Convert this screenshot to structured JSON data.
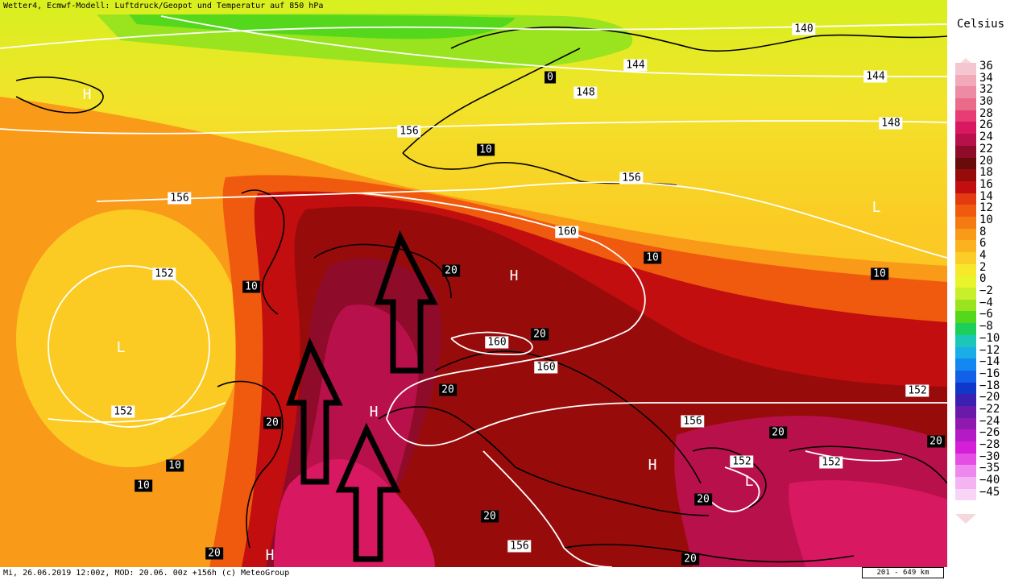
{
  "header": {
    "title": "Wetter4, Ecmwf-Modell: Luftdruck/Geopot und Temperatur auf 850 hPa"
  },
  "footer": {
    "info": "Mi, 26.06.2019 12:00z, MOD: 20.06. 00z +156h (c) MeteoGroup",
    "scale": "201 - 649 km"
  },
  "legend": {
    "unit": "Celsius",
    "items": [
      {
        "label": "36",
        "color": "#f4c6cf"
      },
      {
        "label": "34",
        "color": "#f2a9b8"
      },
      {
        "label": "32",
        "color": "#ee8aa3"
      },
      {
        "label": "30",
        "color": "#ea6a8a"
      },
      {
        "label": "28",
        "color": "#e83c74"
      },
      {
        "label": "26",
        "color": "#d81860"
      },
      {
        "label": "24",
        "color": "#b8104a"
      },
      {
        "label": "22",
        "color": "#8f0b2a"
      },
      {
        "label": "20",
        "color": "#6a0b0b"
      },
      {
        "label": "18",
        "color": "#980b0b"
      },
      {
        "label": "16",
        "color": "#c20e0e"
      },
      {
        "label": "14",
        "color": "#e33a10"
      },
      {
        "label": "12",
        "color": "#f05a0e"
      },
      {
        "label": "10",
        "color": "#f57a12"
      },
      {
        "label": "8",
        "color": "#f99a18"
      },
      {
        "label": "6",
        "color": "#fbb21f"
      },
      {
        "label": "4",
        "color": "#fbcd26"
      },
      {
        "label": "2",
        "color": "#f7e82b"
      },
      {
        "label": "0",
        "color": "#e9f52a"
      },
      {
        "label": "−2",
        "color": "#c9ef2a"
      },
      {
        "label": "−4",
        "color": "#99e41f"
      },
      {
        "label": "−6",
        "color": "#55d81c"
      },
      {
        "label": "−8",
        "color": "#1ccf5a"
      },
      {
        "label": "−10",
        "color": "#1cc7b8"
      },
      {
        "label": "−12",
        "color": "#1aaee8"
      },
      {
        "label": "−14",
        "color": "#1388f0"
      },
      {
        "label": "−16",
        "color": "#1260e8"
      },
      {
        "label": "−18",
        "color": "#1038c8"
      },
      {
        "label": "−20",
        "color": "#3a1fb0"
      },
      {
        "label": "−22",
        "color": "#6a1aa8"
      },
      {
        "label": "−24",
        "color": "#901ab0"
      },
      {
        "label": "−26",
        "color": "#b41bc4"
      },
      {
        "label": "−28",
        "color": "#d41ed8"
      },
      {
        "label": "−30",
        "color": "#e44ee2"
      },
      {
        "label": "−35",
        "color": "#ee88ee"
      },
      {
        "label": "−40",
        "color": "#f4b4f2"
      },
      {
        "label": "−45",
        "color": "#f8d4f6"
      }
    ]
  },
  "map": {
    "pressure_centers": [
      {
        "label": "H"
      },
      {
        "label": "L"
      },
      {
        "label": "H"
      },
      {
        "label": "L"
      },
      {
        "label": "H"
      },
      {
        "label": "H"
      },
      {
        "label": "L"
      },
      {
        "label": "H"
      }
    ],
    "isohypse_labels": [
      {
        "label": "140"
      },
      {
        "label": "144"
      },
      {
        "label": "144"
      },
      {
        "label": "148"
      },
      {
        "label": "148"
      },
      {
        "label": "156"
      },
      {
        "label": "156"
      },
      {
        "label": "156"
      },
      {
        "label": "160"
      },
      {
        "label": "152"
      },
      {
        "label": "152"
      },
      {
        "label": "160"
      },
      {
        "label": "160"
      },
      {
        "label": "156"
      },
      {
        "label": "152"
      },
      {
        "label": "152"
      },
      {
        "label": "152"
      },
      {
        "label": "156"
      }
    ],
    "temperature_labels": [
      {
        "label": "0"
      },
      {
        "label": "10"
      },
      {
        "label": "10"
      },
      {
        "label": "10"
      },
      {
        "label": "20"
      },
      {
        "label": "10"
      },
      {
        "label": "20"
      },
      {
        "label": "20"
      },
      {
        "label": "20"
      },
      {
        "label": "20"
      },
      {
        "label": "10"
      },
      {
        "label": "10"
      },
      {
        "label": "20"
      },
      {
        "label": "20"
      },
      {
        "label": "20"
      },
      {
        "label": "20"
      },
      {
        "label": "20"
      }
    ]
  }
}
